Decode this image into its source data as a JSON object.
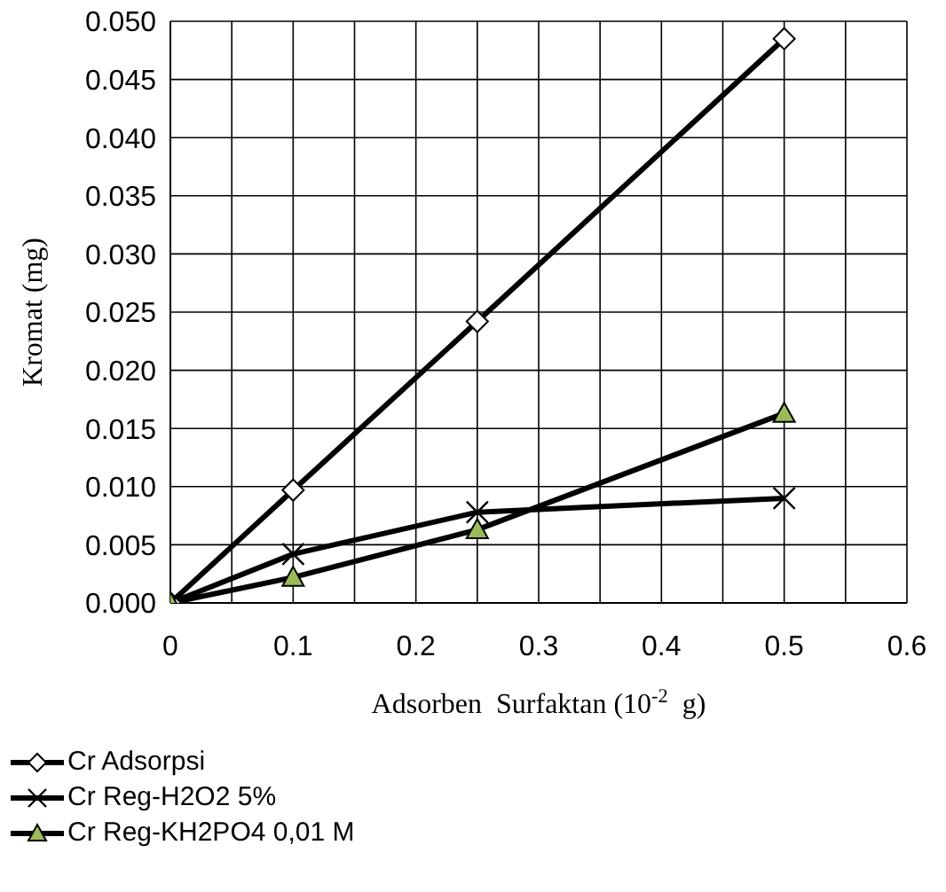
{
  "chart_data": {
    "type": "line",
    "xlabel": "Adsorben  Surfaktan (10$^{-2}$ g)",
    "ylabel": "Kromat (mg)",
    "x": [
      0,
      0.1,
      0.25,
      0.5
    ],
    "series": [
      {
        "name": "Cr Adsorpsi",
        "color": "#000000",
        "marker": "diamond",
        "colors": [
          "#ffffff",
          "#ffffff",
          "#ffffff",
          "#ffffff"
        ],
        "values": [
          0,
          0.0097,
          0.0242,
          0.0485
        ]
      },
      {
        "name": "Cr Reg-H2O2 5%",
        "color": "#000000",
        "marker": "cross",
        "values": [
          0,
          0.0042,
          0.0078,
          0.009
        ]
      },
      {
        "name": "Cr Reg-KH2PO4 0,01 M",
        "color": "#000000",
        "marker": "triangle",
        "colors": [
          "#9bbb59",
          "#9bbb59",
          "#9bbb59",
          "#9bbb59"
        ],
        "values": [
          0,
          0.0022,
          0.0063,
          0.0163
        ]
      }
    ],
    "xlim": [
      0,
      0.6
    ],
    "xticks": [
      0,
      {
        "value": 0.05,
        "label": null
      },
      0.1,
      {
        "value": 0.15,
        "label": null
      },
      0.2,
      {
        "value": 0.25,
        "label": null
      },
      0.3,
      {
        "value": 0.35,
        "label": null
      },
      0.4,
      {
        "value": 0.45,
        "label": null
      },
      0.5,
      {
        "value": 0.55,
        "label": null
      },
      0.6
    ],
    "ylim": [
      0,
      0.05
    ],
    "yticks": [
      {
        "value": 0,
        "label": "0.000"
      },
      {
        "value": 0.005,
        "label": "0.005"
      },
      {
        "value": 0.01,
        "label": "0.010"
      },
      {
        "value": 0.015,
        "label": "0.015"
      },
      {
        "value": 0.02,
        "label": "0.020"
      },
      {
        "value": 0.025,
        "label": "0.025"
      },
      {
        "value": 0.03,
        "label": "0.030"
      },
      {
        "value": 0.035,
        "label": "0.035"
      },
      {
        "value": 0.04,
        "label": "0.040"
      },
      {
        "value": 0.045,
        "label": "0.045"
      },
      {
        "value": 0.05,
        "label": "0.050"
      }
    ],
    "grid": true,
    "legend": "bottom",
    "line_style": "solid"
  }
}
